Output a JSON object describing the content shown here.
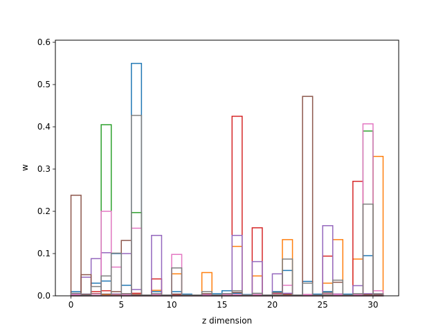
{
  "chart_data": {
    "type": "bar",
    "style": "step-outline",
    "title": "",
    "xlabel": "z dimension",
    "ylabel": "w",
    "xlim": [
      -1.55,
      32.55
    ],
    "ylim": [
      0,
      0.605
    ],
    "x_ticks": [
      0,
      5,
      10,
      15,
      20,
      25,
      30
    ],
    "y_ticks": [
      0.0,
      0.1,
      0.2,
      0.3,
      0.4,
      0.5,
      0.6
    ],
    "x_tick_labels": [
      "0",
      "5",
      "10",
      "15",
      "20",
      "25",
      "30"
    ],
    "y_tick_labels": [
      "0.0",
      "0.1",
      "0.2",
      "0.3",
      "0.4",
      "0.5",
      "0.6"
    ],
    "grid": false,
    "legend": "none",
    "bins": [
      0,
      1,
      2,
      3,
      4,
      5,
      6,
      7,
      8,
      9,
      10,
      11,
      12,
      13,
      14,
      15,
      16,
      17,
      18,
      19,
      20,
      21,
      22,
      23,
      24,
      25,
      26,
      27,
      28,
      29,
      30
    ],
    "series": [
      {
        "color": "#1f77b4",
        "values": [
          0.01,
          0.004,
          0.03,
          0.035,
          0.1,
          0.025,
          0.55,
          0.002,
          0.01,
          0.002,
          0.01,
          0.004,
          0.002,
          0.004,
          0.005,
          0.012,
          0.006,
          0.003,
          0.003,
          0.002,
          0.01,
          0.06,
          0.002,
          0.034,
          0.004,
          0.01,
          0.004,
          0.004,
          0.003,
          0.095,
          0.003
        ]
      },
      {
        "color": "#ff7f0e",
        "values": [
          0.004,
          0.002,
          0.005,
          0.003,
          0.003,
          0.004,
          0.003,
          0.002,
          0.013,
          0.002,
          0.052,
          0.002,
          0.002,
          0.055,
          0.002,
          0.003,
          0.117,
          0.002,
          0.047,
          0.002,
          0.002,
          0.133,
          0.002,
          0.002,
          0.002,
          0.03,
          0.133,
          0.002,
          0.087,
          0.003,
          0.33
        ]
      },
      {
        "color": "#2ca02c",
        "values": [
          0.003,
          0.003,
          0.004,
          0.405,
          0.004,
          0.003,
          0.197,
          0.002,
          0.003,
          0.002,
          0.003,
          0.002,
          0.002,
          0.003,
          0.002,
          0.003,
          0.003,
          0.002,
          0.003,
          0.002,
          0.003,
          0.003,
          0.002,
          0.003,
          0.002,
          0.003,
          0.003,
          0.002,
          0.003,
          0.39,
          0.003
        ]
      },
      {
        "color": "#d62728",
        "values": [
          0.004,
          0.003,
          0.01,
          0.012,
          0.004,
          0.005,
          0.006,
          0.002,
          0.04,
          0.002,
          0.003,
          0.002,
          0.002,
          0.002,
          0.002,
          0.003,
          0.425,
          0.002,
          0.161,
          0.002,
          0.005,
          0.005,
          0.002,
          0.003,
          0.002,
          0.094,
          0.004,
          0.002,
          0.271,
          0.003,
          0.003
        ]
      },
      {
        "color": "#9467bd",
        "values": [
          0.005,
          0.044,
          0.088,
          0.102,
          0.004,
          0.1,
          0.015,
          0.002,
          0.143,
          0.002,
          0.004,
          0.002,
          0.002,
          0.003,
          0.002,
          0.005,
          0.143,
          0.002,
          0.081,
          0.002,
          0.052,
          0.006,
          0.002,
          0.003,
          0.002,
          0.166,
          0.004,
          0.002,
          0.024,
          0.005,
          0.003
        ]
      },
      {
        "color": "#8c564b",
        "values": [
          0.238,
          0.05,
          0.005,
          0.004,
          0.01,
          0.131,
          0.003,
          0.002,
          0.002,
          0.002,
          0.004,
          0.002,
          0.002,
          0.005,
          0.002,
          0.003,
          0.008,
          0.002,
          0.002,
          0.002,
          0.007,
          0.003,
          0.002,
          0.472,
          0.002,
          0.005,
          0.032,
          0.002,
          0.003,
          0.003,
          0.002
        ]
      },
      {
        "color": "#e377c2",
        "values": [
          0.003,
          0.002,
          0.004,
          0.2,
          0.068,
          0.003,
          0.16,
          0.002,
          0.003,
          0.002,
          0.098,
          0.002,
          0.002,
          0.002,
          0.002,
          0.003,
          0.003,
          0.002,
          0.003,
          0.002,
          0.004,
          0.025,
          0.002,
          0.003,
          0.002,
          0.004,
          0.003,
          0.002,
          0.003,
          0.407,
          0.012
        ]
      },
      {
        "color": "#7f7f7f",
        "values": [
          0.006,
          0.002,
          0.022,
          0.047,
          0.101,
          0.005,
          0.427,
          0.002,
          0.005,
          0.002,
          0.066,
          0.002,
          0.002,
          0.01,
          0.002,
          0.005,
          0.012,
          0.002,
          0.006,
          0.002,
          0.008,
          0.087,
          0.002,
          0.03,
          0.002,
          0.008,
          0.037,
          0.002,
          0.005,
          0.217,
          0.005
        ]
      }
    ]
  }
}
